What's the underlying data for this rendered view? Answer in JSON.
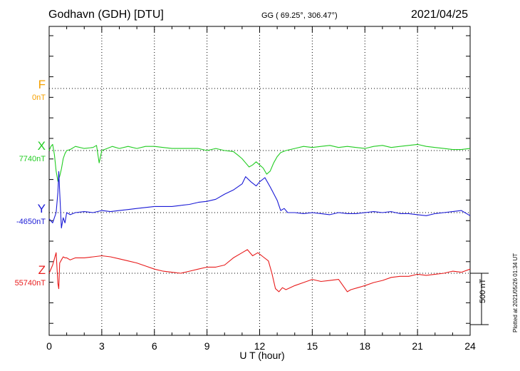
{
  "header": {
    "station": "Godhavn (GDH)  [DTU]",
    "coords": "GG ( 69.25°, 306.47°)",
    "date": "2021/04/25"
  },
  "components": [
    {
      "letter": "F",
      "baseline": "0nT",
      "color": "#f5a000"
    },
    {
      "letter": "X",
      "baseline": "7740nT",
      "color": "#22cc22"
    },
    {
      "letter": "Y",
      "baseline": "-4650nT",
      "color": "#1a1ad6"
    },
    {
      "letter": "Z",
      "baseline": "55740nT",
      "color": "#e81c1c"
    }
  ],
  "footer": {
    "xlabel": "U T (hour)",
    "scale_label": "500 nT",
    "plotted": "Plotted at 2021/05/26 01:34 UT"
  },
  "chart_data": {
    "type": "line",
    "xlabel": "U T (hour)",
    "xlim": [
      0,
      24
    ],
    "xticks": [
      0,
      3,
      6,
      9,
      12,
      15,
      18,
      21,
      24
    ],
    "y_unit": "nT",
    "scale_bar_nT": 500,
    "series": [
      {
        "name": "X",
        "baseline_nT": 7740,
        "color": "#22cc22",
        "x": [
          0,
          0.1,
          0.2,
          0.3,
          0.4,
          0.5,
          0.6,
          0.7,
          0.8,
          0.9,
          1.0,
          1.2,
          1.5,
          2.0,
          2.5,
          2.7,
          2.85,
          3.0,
          3.3,
          3.6,
          4.0,
          4.5,
          5.0,
          5.5,
          6.0,
          6.5,
          7.0,
          7.5,
          8.0,
          8.5,
          9.0,
          9.5,
          10.0,
          10.5,
          10.8,
          11.0,
          11.2,
          11.4,
          11.6,
          11.8,
          12.0,
          12.2,
          12.4,
          12.6,
          12.8,
          13.0,
          13.2,
          13.5,
          14.0,
          14.5,
          15.0,
          15.5,
          16.0,
          16.5,
          17.0,
          17.5,
          18.0,
          18.5,
          19.0,
          19.5,
          20.0,
          20.5,
          21.0,
          21.5,
          22.0,
          22.5,
          23.0,
          23.5,
          24.0
        ],
        "y": [
          0,
          40,
          60,
          -40,
          -200,
          -300,
          -250,
          -180,
          -80,
          -30,
          0,
          10,
          40,
          20,
          30,
          50,
          -120,
          0,
          20,
          40,
          20,
          40,
          20,
          40,
          40,
          30,
          20,
          20,
          20,
          20,
          0,
          20,
          0,
          -10,
          -50,
          -80,
          -120,
          -160,
          -140,
          -110,
          -140,
          -170,
          -230,
          -200,
          -120,
          -60,
          -20,
          0,
          20,
          40,
          30,
          40,
          50,
          30,
          40,
          30,
          20,
          40,
          50,
          30,
          40,
          50,
          60,
          40,
          30,
          20,
          10,
          10,
          20
        ]
      },
      {
        "name": "Y",
        "baseline_nT": -4650,
        "color": "#1a1ad6",
        "x": [
          0,
          0.2,
          0.4,
          0.5,
          0.55,
          0.6,
          0.7,
          0.8,
          0.9,
          1.0,
          1.2,
          1.5,
          2.0,
          2.5,
          3.0,
          3.5,
          4.0,
          4.5,
          5.0,
          5.5,
          6.0,
          6.5,
          7.0,
          7.5,
          8.0,
          8.5,
          9.0,
          9.5,
          10.0,
          10.5,
          11.0,
          11.2,
          11.5,
          11.8,
          12.0,
          12.3,
          12.6,
          13.0,
          13.2,
          13.4,
          13.6,
          14.0,
          14.5,
          15.0,
          15.5,
          16.0,
          16.5,
          17.0,
          17.5,
          18.0,
          18.5,
          19.0,
          19.5,
          20.0,
          20.5,
          21.0,
          21.5,
          22.0,
          22.5,
          23.0,
          23.5,
          24.0
        ],
        "y": [
          -60,
          -100,
          0,
          200,
          400,
          200,
          -150,
          -50,
          -100,
          0,
          -20,
          0,
          10,
          0,
          20,
          10,
          20,
          30,
          40,
          50,
          60,
          60,
          60,
          70,
          80,
          100,
          110,
          130,
          180,
          220,
          280,
          350,
          300,
          260,
          300,
          340,
          250,
          120,
          20,
          40,
          0,
          0,
          -10,
          0,
          -10,
          -20,
          0,
          -10,
          -10,
          0,
          10,
          0,
          10,
          -10,
          -10,
          -20,
          -30,
          -10,
          0,
          10,
          20,
          -30
        ]
      },
      {
        "name": "Z",
        "baseline_nT": 55740,
        "color": "#e81c1c",
        "x": [
          0,
          0.2,
          0.4,
          0.5,
          0.55,
          0.6,
          0.7,
          0.8,
          0.9,
          1.0,
          1.2,
          1.5,
          2.0,
          2.5,
          3.0,
          3.5,
          4.0,
          4.5,
          5.0,
          5.5,
          6.0,
          6.5,
          7.0,
          7.5,
          8.0,
          8.5,
          9.0,
          9.5,
          10.0,
          10.5,
          11.0,
          11.3,
          11.6,
          11.9,
          12.2,
          12.5,
          12.7,
          12.9,
          13.1,
          13.3,
          13.5,
          14.0,
          14.5,
          15.0,
          15.5,
          16.0,
          16.5,
          17.0,
          17.2,
          17.6,
          18.0,
          18.5,
          19.0,
          19.5,
          20.0,
          20.5,
          21.0,
          21.5,
          22.0,
          22.5,
          23.0,
          23.5,
          24.0
        ],
        "y": [
          0,
          80,
          200,
          -100,
          -150,
          100,
          130,
          160,
          150,
          150,
          130,
          150,
          150,
          160,
          170,
          160,
          140,
          120,
          100,
          70,
          40,
          20,
          10,
          0,
          20,
          40,
          60,
          60,
          80,
          150,
          200,
          230,
          170,
          200,
          160,
          120,
          0,
          -150,
          -180,
          -140,
          -160,
          -120,
          -90,
          -60,
          -80,
          -70,
          -60,
          -180,
          -160,
          -140,
          -120,
          -90,
          -70,
          -40,
          -30,
          -30,
          -10,
          -20,
          -10,
          0,
          20,
          10,
          40
        ]
      },
      {
        "name": "F",
        "baseline_nT": 0,
        "color": "#f5a000",
        "x": [],
        "y": []
      }
    ]
  }
}
